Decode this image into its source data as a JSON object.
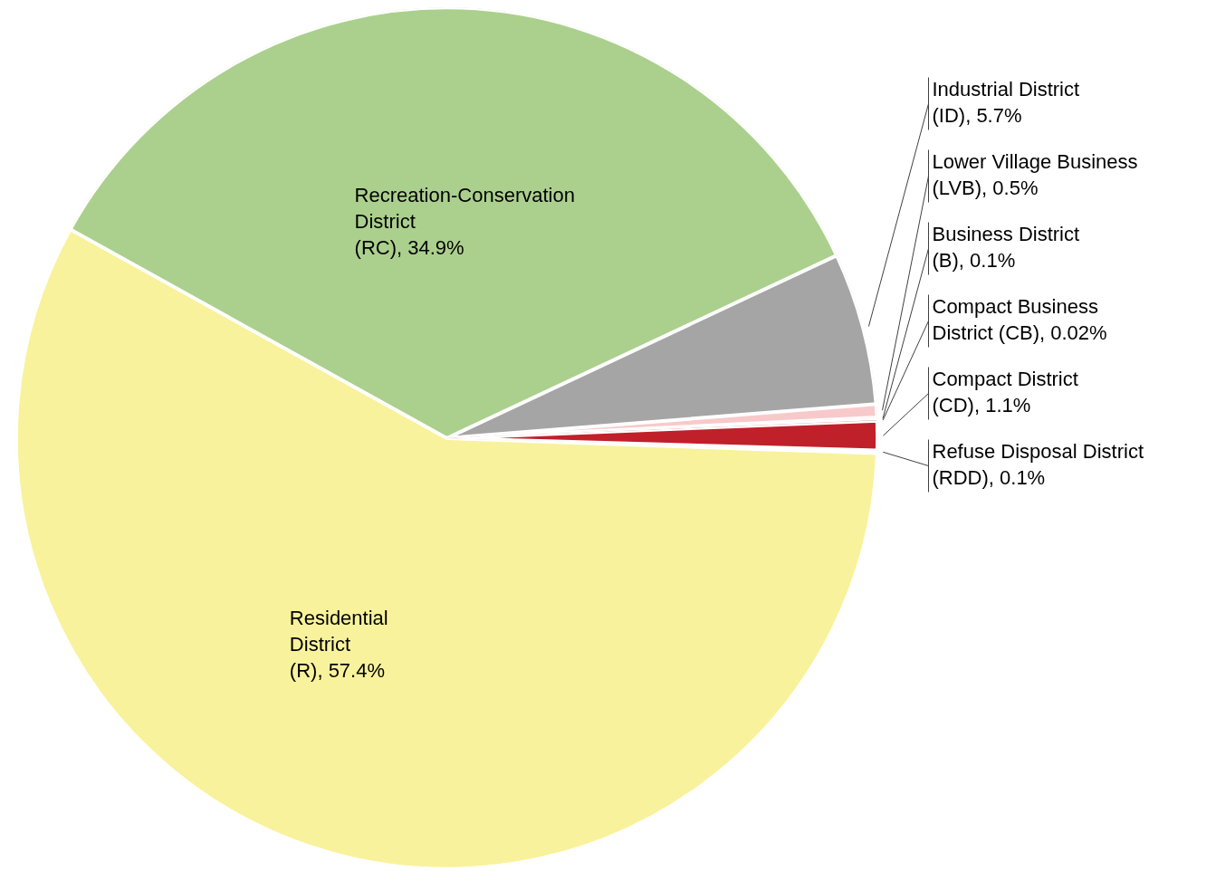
{
  "chart_data": {
    "type": "pie",
    "categories": [
      "Residential District (R)",
      "Recreation-Conservation District (RC)",
      "Industrial District (ID)",
      "Lower Village Business (LVB)",
      "Business District (B)",
      "Compact Business District (CB)",
      "Compact District (CD)",
      "Refuse Disposal District (RDD)"
    ],
    "values": [
      57.4,
      34.9,
      5.7,
      0.5,
      0.1,
      0.02,
      1.1,
      0.1
    ],
    "value_labels": [
      "57.4%",
      "34.9%",
      "5.7%",
      "0.5%",
      "0.1%",
      "0.02%",
      "1.1%",
      "0.1%"
    ],
    "colors": [
      "#f9f29c",
      "#abd08d",
      "#a5a5a5",
      "#f8c9cb",
      "#e6b9b8",
      "#d98f92",
      "#c0202a",
      "#d9d9d9"
    ],
    "legend": false
  }
}
